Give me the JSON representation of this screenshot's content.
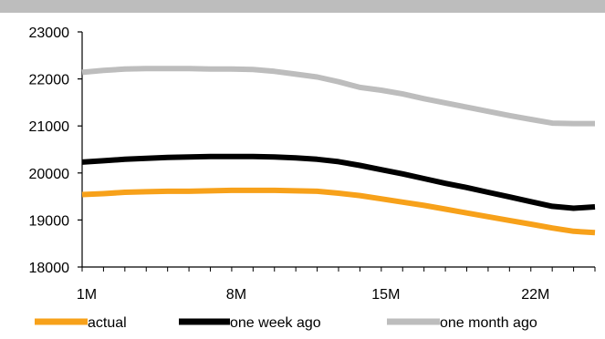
{
  "chart_data": {
    "type": "line",
    "title": "",
    "xlabel": "",
    "ylabel": "",
    "x": [
      1,
      2,
      3,
      4,
      5,
      6,
      7,
      8,
      9,
      10,
      11,
      12,
      13,
      14,
      15,
      16,
      17,
      18,
      19,
      20,
      21,
      22,
      23,
      24,
      25
    ],
    "x_ticks": [
      1,
      8,
      15,
      22
    ],
    "x_tick_labels": [
      "1M",
      "8M",
      "15M",
      "22M"
    ],
    "ylim": [
      18000,
      23000
    ],
    "y_ticks": [
      18000,
      19000,
      20000,
      21000,
      22000,
      23000
    ],
    "y_tick_labels": [
      "18000",
      "19000",
      "20000",
      "21000",
      "22000",
      "23000"
    ],
    "grid": false,
    "legend_position": "bottom",
    "series": [
      {
        "name": "actual",
        "color": "#f7a11a",
        "values": [
          19540,
          19560,
          19590,
          19600,
          19610,
          19610,
          19620,
          19630,
          19630,
          19630,
          19620,
          19610,
          19570,
          19520,
          19450,
          19380,
          19310,
          19230,
          19150,
          19070,
          18990,
          18910,
          18830,
          18760,
          18730
        ]
      },
      {
        "name": "one week ago",
        "color": "#000000",
        "values": [
          20230,
          20260,
          20290,
          20310,
          20330,
          20340,
          20350,
          20350,
          20350,
          20340,
          20320,
          20290,
          20240,
          20160,
          20070,
          19980,
          19880,
          19780,
          19690,
          19590,
          19490,
          19390,
          19290,
          19250,
          19280
        ]
      },
      {
        "name": "one month ago",
        "color": "#bdbdbd",
        "values": [
          22140,
          22180,
          22210,
          22220,
          22220,
          22220,
          22210,
          22210,
          22200,
          22160,
          22100,
          22040,
          21940,
          21820,
          21760,
          21680,
          21580,
          21490,
          21400,
          21310,
          21220,
          21140,
          21060,
          21050,
          21050
        ]
      }
    ]
  }
}
